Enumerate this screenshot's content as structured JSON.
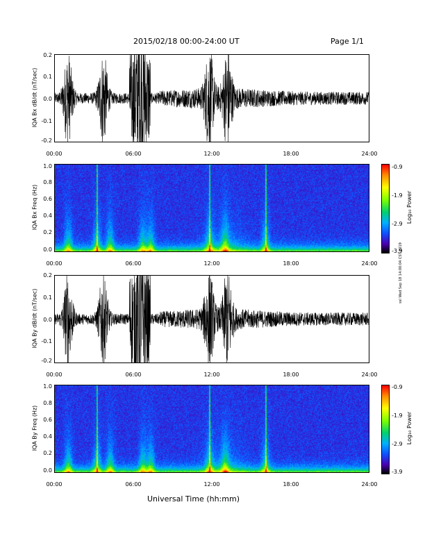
{
  "header": {
    "date_range": "2015/02/18  00:00-24:00 UT",
    "page": "Page 1/1"
  },
  "x_axis": {
    "label": "Universal Time (hh:mm)",
    "ticks": [
      "00:00",
      "06:00",
      "12:00",
      "18:00",
      "24:00"
    ]
  },
  "side_stamp": "ssl Wed Sep 18 14:00:04 CST 2019",
  "chart_data": [
    {
      "type": "line",
      "ylabel": "IQA Bx dB/dt (nT/sec)",
      "ylim": [
        -0.2,
        0.2
      ],
      "yticks": [
        "0.2",
        "0.1",
        "0.0",
        "-0.1",
        "-0.2"
      ],
      "xlim": [
        0,
        24
      ],
      "bursts_hours": [
        1.0,
        3.7,
        6.5,
        11.8,
        13.2
      ]
    },
    {
      "type": "heatmap",
      "ylabel": "IQA Bx Freq (Hz)",
      "ylim": [
        0.0,
        1.0
      ],
      "yticks": [
        "1.0",
        "0.8",
        "0.6",
        "0.4",
        "0.2",
        "0.0"
      ],
      "xlim": [
        0,
        24
      ],
      "colorbar": {
        "label": "Log₁₀ Power",
        "ticks": [
          "-0.9",
          "-1.9",
          "-2.9",
          "-3.9"
        ],
        "range": [
          -3.9,
          -0.9
        ]
      }
    },
    {
      "type": "line",
      "ylabel": "IQA By dB/dt (nT/sec)",
      "ylim": [
        -0.2,
        0.2
      ],
      "yticks": [
        "0.2",
        "0.1",
        "0.0",
        "-0.1",
        "-0.2"
      ],
      "xlim": [
        0,
        24
      ],
      "bursts_hours": [
        1.0,
        3.7,
        6.5,
        11.8,
        13.2
      ]
    },
    {
      "type": "heatmap",
      "ylabel": "IQA By Freq (Hz)",
      "ylim": [
        0.0,
        1.0
      ],
      "yticks": [
        "1.0",
        "0.8",
        "0.6",
        "0.4",
        "0.2",
        "0.0"
      ],
      "xlim": [
        0,
        24
      ],
      "colorbar": {
        "label": "Log₁₀ Power",
        "ticks": [
          "-0.9",
          "-1.9",
          "-2.9",
          "-3.9"
        ],
        "range": [
          -3.9,
          -0.9
        ]
      }
    }
  ]
}
